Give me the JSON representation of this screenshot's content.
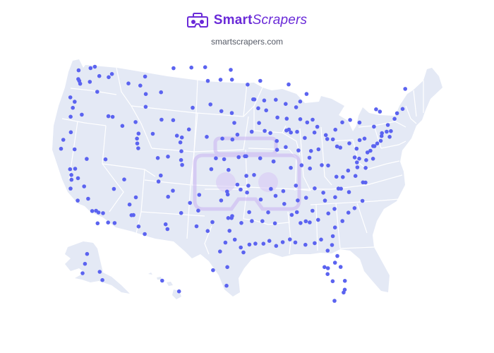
{
  "brand": {
    "name_bold": "Smart",
    "name_italic": "Scrapers",
    "url": "smartscrapers.com"
  },
  "icons": [
    "vr-headset-logo-icon",
    "vr-headset-watermark-icon"
  ],
  "colors": {
    "brand": "#6a2ad8",
    "land": "#e4e9f5",
    "state_border": "#ffffff",
    "marker": "#5b63f0",
    "watermark": "#c9b3f2"
  },
  "map": {
    "region": "United States",
    "marker_lonlat": [
      [
        -122.6,
        48.7
      ],
      [
        -120.6,
        48.8
      ],
      [
        -119.9,
        48.9
      ],
      [
        -122.5,
        47.8
      ],
      [
        -122.3,
        47.6
      ],
      [
        -122.1,
        47.3
      ],
      [
        -120.5,
        47.4
      ],
      [
        -119.0,
        47.9
      ],
      [
        -117.4,
        47.7
      ],
      [
        -116.9,
        48.0
      ],
      [
        -119.1,
        46.3
      ],
      [
        -123.5,
        46.0
      ],
      [
        -122.7,
        45.5
      ],
      [
        -122.9,
        44.9
      ],
      [
        -123.1,
        44.0
      ],
      [
        -121.3,
        44.1
      ],
      [
        -122.8,
        42.4
      ],
      [
        -123.9,
        41.7
      ],
      [
        -121.9,
        40.6
      ],
      [
        -124.1,
        40.8
      ],
      [
        -122.3,
        38.6
      ],
      [
        -122.0,
        38.0
      ],
      [
        -121.9,
        37.5
      ],
      [
        -121.5,
        38.6
      ],
      [
        -120.9,
        37.6
      ],
      [
        -119.8,
        36.7
      ],
      [
        -121.9,
        36.6
      ],
      [
        -119.0,
        35.4
      ],
      [
        -120.6,
        35.3
      ],
      [
        -118.2,
        34.1
      ],
      [
        -117.6,
        34.1
      ],
      [
        -117.2,
        33.9
      ],
      [
        -116.5,
        33.8
      ],
      [
        -117.2,
        32.8
      ],
      [
        -115.6,
        32.8
      ],
      [
        -119.8,
        39.5
      ],
      [
        -116.8,
        39.3
      ],
      [
        -115.1,
        36.2
      ],
      [
        -113.6,
        37.1
      ],
      [
        -111.7,
        40.2
      ],
      [
        -111.9,
        40.7
      ],
      [
        -112.0,
        41.2
      ],
      [
        -111.8,
        41.7
      ],
      [
        -112.4,
        42.9
      ],
      [
        -114.5,
        42.6
      ],
      [
        -116.2,
        43.6
      ],
      [
        -116.9,
        43.7
      ],
      [
        -111.0,
        45.7
      ],
      [
        -108.5,
        45.8
      ],
      [
        -111.3,
        47.5
      ],
      [
        -114.0,
        46.9
      ],
      [
        -112.0,
        46.6
      ],
      [
        -106.6,
        48.2
      ],
      [
        -103.6,
        48.2
      ],
      [
        -100.8,
        46.8
      ],
      [
        -98.7,
        46.9
      ],
      [
        -96.8,
        46.9
      ],
      [
        -97.0,
        47.9
      ],
      [
        -101.3,
        48.2
      ],
      [
        -96.8,
        43.5
      ],
      [
        -98.5,
        43.7
      ],
      [
        -103.2,
        44.1
      ],
      [
        -100.3,
        44.4
      ],
      [
        -104.8,
        41.1
      ],
      [
        -106.3,
        42.9
      ],
      [
        -105.6,
        41.3
      ],
      [
        -108.2,
        43.0
      ],
      [
        -109.5,
        41.6
      ],
      [
        -110.9,
        44.4
      ],
      [
        -104.8,
        39.7
      ],
      [
        -105.0,
        40.6
      ],
      [
        -104.8,
        38.8
      ],
      [
        -104.6,
        38.3
      ],
      [
        -108.5,
        39.1
      ],
      [
        -106.9,
        39.2
      ],
      [
        -107.9,
        37.3
      ],
      [
        -106.6,
        35.1
      ],
      [
        -105.9,
        35.7
      ],
      [
        -106.8,
        32.3
      ],
      [
        -104.5,
        33.4
      ],
      [
        -103.2,
        34.4
      ],
      [
        -108.2,
        36.7
      ],
      [
        -112.1,
        33.4
      ],
      [
        -111.8,
        33.4
      ],
      [
        -110.9,
        32.2
      ],
      [
        -112.5,
        34.5
      ],
      [
        -111.6,
        35.2
      ],
      [
        -114.6,
        32.7
      ],
      [
        -109.9,
        31.4
      ],
      [
        -101.8,
        35.2
      ],
      [
        -101.9,
        33.6
      ],
      [
        -106.5,
        31.8
      ],
      [
        -102.1,
        32.0
      ],
      [
        -100.4,
        31.5
      ],
      [
        -99.7,
        32.4
      ],
      [
        -97.3,
        32.8
      ],
      [
        -96.8,
        32.8
      ],
      [
        -96.7,
        33.0
      ],
      [
        -95.3,
        32.3
      ],
      [
        -94.1,
        33.4
      ],
      [
        -97.7,
        30.3
      ],
      [
        -98.5,
        29.4
      ],
      [
        -95.4,
        29.8
      ],
      [
        -94.1,
        30.1
      ],
      [
        -97.4,
        27.8
      ],
      [
        -97.5,
        25.9
      ],
      [
        -99.5,
        27.5
      ],
      [
        -96.3,
        30.6
      ],
      [
        -97.1,
        31.5
      ],
      [
        -95.0,
        29.3
      ],
      [
        -97.5,
        35.5
      ],
      [
        -97.4,
        35.2
      ],
      [
        -95.9,
        36.2
      ],
      [
        -95.4,
        35.7
      ],
      [
        -98.4,
        34.6
      ],
      [
        -97.3,
        37.7
      ],
      [
        -95.7,
        39.0
      ],
      [
        -98.0,
        38.8
      ],
      [
        -99.3,
        38.9
      ],
      [
        -94.7,
        39.1
      ],
      [
        -100.0,
        37.8
      ],
      [
        -96.7,
        40.8
      ],
      [
        -95.9,
        41.3
      ],
      [
        -98.3,
        40.9
      ],
      [
        -100.8,
        41.1
      ],
      [
        -103.7,
        41.9
      ],
      [
        -93.6,
        41.6
      ],
      [
        -91.5,
        41.7
      ],
      [
        -90.6,
        41.5
      ],
      [
        -92.4,
        42.5
      ],
      [
        -96.4,
        42.5
      ],
      [
        -93.3,
        44.9
      ],
      [
        -93.1,
        44.9
      ],
      [
        -92.1,
        46.8
      ],
      [
        -94.2,
        46.4
      ],
      [
        -92.5,
        44.0
      ],
      [
        -89.4,
        43.1
      ],
      [
        -87.9,
        43.0
      ],
      [
        -88.0,
        44.5
      ],
      [
        -89.6,
        44.9
      ],
      [
        -91.5,
        44.8
      ],
      [
        -91.2,
        43.8
      ],
      [
        -87.6,
        41.9
      ],
      [
        -88.0,
        41.8
      ],
      [
        -89.6,
        39.8
      ],
      [
        -89.6,
        40.7
      ],
      [
        -90.2,
        38.6
      ],
      [
        -88.2,
        40.1
      ],
      [
        -90.2,
        38.6
      ],
      [
        -92.3,
        38.9
      ],
      [
        -94.5,
        39.1
      ],
      [
        -93.3,
        37.2
      ],
      [
        -94.5,
        37.1
      ],
      [
        -90.0,
        35.1
      ],
      [
        -86.8,
        36.2
      ],
      [
        -85.3,
        35.0
      ],
      [
        -83.9,
        36.0
      ],
      [
        -88.8,
        35.6
      ],
      [
        -92.3,
        34.7
      ],
      [
        -94.2,
        36.1
      ],
      [
        -94.4,
        35.4
      ],
      [
        -90.7,
        35.8
      ],
      [
        -91.2,
        33.4
      ],
      [
        -90.2,
        32.3
      ],
      [
        -88.7,
        34.3
      ],
      [
        -89.1,
        30.4
      ],
      [
        -88.0,
        30.7
      ],
      [
        -86.3,
        32.4
      ],
      [
        -86.8,
        33.5
      ],
      [
        -85.5,
        32.6
      ],
      [
        -86.6,
        34.7
      ],
      [
        -87.6,
        33.2
      ],
      [
        -91.1,
        30.5
      ],
      [
        -90.1,
        30.0
      ],
      [
        -93.7,
        32.5
      ],
      [
        -92.0,
        30.2
      ],
      [
        -93.2,
        30.2
      ],
      [
        -92.1,
        32.5
      ],
      [
        -84.4,
        33.7
      ],
      [
        -83.6,
        32.8
      ],
      [
        -81.1,
        32.1
      ],
      [
        -82.0,
        33.5
      ],
      [
        -84.9,
        32.5
      ],
      [
        -83.3,
        30.8
      ],
      [
        -81.5,
        31.2
      ],
      [
        -82.4,
        34.8
      ],
      [
        -81.0,
        34.0
      ],
      [
        -79.9,
        32.8
      ],
      [
        -78.9,
        33.7
      ],
      [
        -80.8,
        35.2
      ],
      [
        -79.8,
        36.1
      ],
      [
        -78.6,
        35.8
      ],
      [
        -77.9,
        34.2
      ],
      [
        -76.6,
        35.0
      ],
      [
        -80.2,
        36.1
      ],
      [
        -82.6,
        35.6
      ],
      [
        -81.7,
        30.3
      ],
      [
        -82.4,
        29.7
      ],
      [
        -84.3,
        30.4
      ],
      [
        -87.2,
        30.4
      ],
      [
        -81.4,
        28.5
      ],
      [
        -82.5,
        27.9
      ],
      [
        -82.6,
        27.3
      ],
      [
        -81.9,
        26.6
      ],
      [
        -80.1,
        26.7
      ],
      [
        -80.2,
        25.8
      ],
      [
        -80.4,
        25.5
      ],
      [
        -80.6,
        28.1
      ],
      [
        -81.0,
        29.2
      ],
      [
        -81.8,
        24.6
      ],
      [
        -85.7,
        30.2
      ],
      [
        -83.0,
        28.0
      ],
      [
        -86.2,
        39.8
      ],
      [
        -85.1,
        41.1
      ],
      [
        -87.5,
        38.0
      ],
      [
        -86.3,
        41.7
      ],
      [
        -87.3,
        41.6
      ],
      [
        -84.5,
        39.1
      ],
      [
        -83.0,
        40.0
      ],
      [
        -81.7,
        41.5
      ],
      [
        -84.2,
        39.8
      ],
      [
        -80.6,
        41.1
      ],
      [
        -83.5,
        41.7
      ],
      [
        -81.5,
        41.1
      ],
      [
        -83.0,
        42.3
      ],
      [
        -85.7,
        43.0
      ],
      [
        -84.6,
        42.7
      ],
      [
        -83.7,
        43.0
      ],
      [
        -85.6,
        44.8
      ],
      [
        -86.3,
        44.2
      ],
      [
        -84.5,
        45.6
      ],
      [
        -87.4,
        46.5
      ],
      [
        -84.5,
        38.0
      ],
      [
        -85.8,
        38.3
      ],
      [
        -82.6,
        38.4
      ],
      [
        -81.6,
        38.4
      ],
      [
        -80.0,
        40.4
      ],
      [
        -75.2,
        40.0
      ],
      [
        -76.9,
        40.3
      ],
      [
        -79.5,
        40.3
      ],
      [
        -78.0,
        40.8
      ],
      [
        -76.3,
        41.2
      ],
      [
        -75.5,
        41.4
      ],
      [
        -80.1,
        42.1
      ],
      [
        -78.9,
        42.9
      ],
      [
        -77.6,
        43.2
      ],
      [
        -76.1,
        43.0
      ],
      [
        -73.8,
        42.7
      ],
      [
        -74.0,
        40.7
      ],
      [
        -73.5,
        41.0
      ],
      [
        -72.9,
        41.3
      ],
      [
        -72.7,
        41.8
      ],
      [
        -71.4,
        41.8
      ],
      [
        -71.1,
        42.4
      ],
      [
        -71.8,
        42.3
      ],
      [
        -72.6,
        42.1
      ],
      [
        -71.5,
        43.0
      ],
      [
        -70.3,
        43.7
      ],
      [
        -69.8,
        44.3
      ],
      [
        -68.8,
        44.8
      ],
      [
        -68.0,
        46.9
      ],
      [
        -72.6,
        44.3
      ],
      [
        -73.2,
        44.5
      ],
      [
        -74.2,
        40.7
      ],
      [
        -74.7,
        40.2
      ],
      [
        -74.4,
        39.4
      ],
      [
        -75.5,
        39.2
      ],
      [
        -76.6,
        39.3
      ],
      [
        -77.0,
        38.9
      ],
      [
        -77.4,
        37.5
      ],
      [
        -76.3,
        36.9
      ],
      [
        -79.4,
        37.3
      ],
      [
        -78.5,
        38.0
      ],
      [
        -80.4,
        37.3
      ],
      [
        -75.7,
        38.4
      ],
      [
        -75.9,
        36.9
      ],
      [
        -77.0,
        38.4
      ],
      [
        -77.3,
        39.4
      ]
    ],
    "alaska_markers_lonlat": [
      [
        -149.9,
        61.2
      ],
      [
        -147.7,
        64.8
      ],
      [
        -134.4,
        58.3
      ],
      [
        -152.4,
        57.8
      ],
      [
        -131.6,
        55.3
      ]
    ],
    "hawaii_markers_lonlat": [
      [
        -157.9,
        21.3
      ],
      [
        -155.1,
        19.7
      ]
    ]
  }
}
